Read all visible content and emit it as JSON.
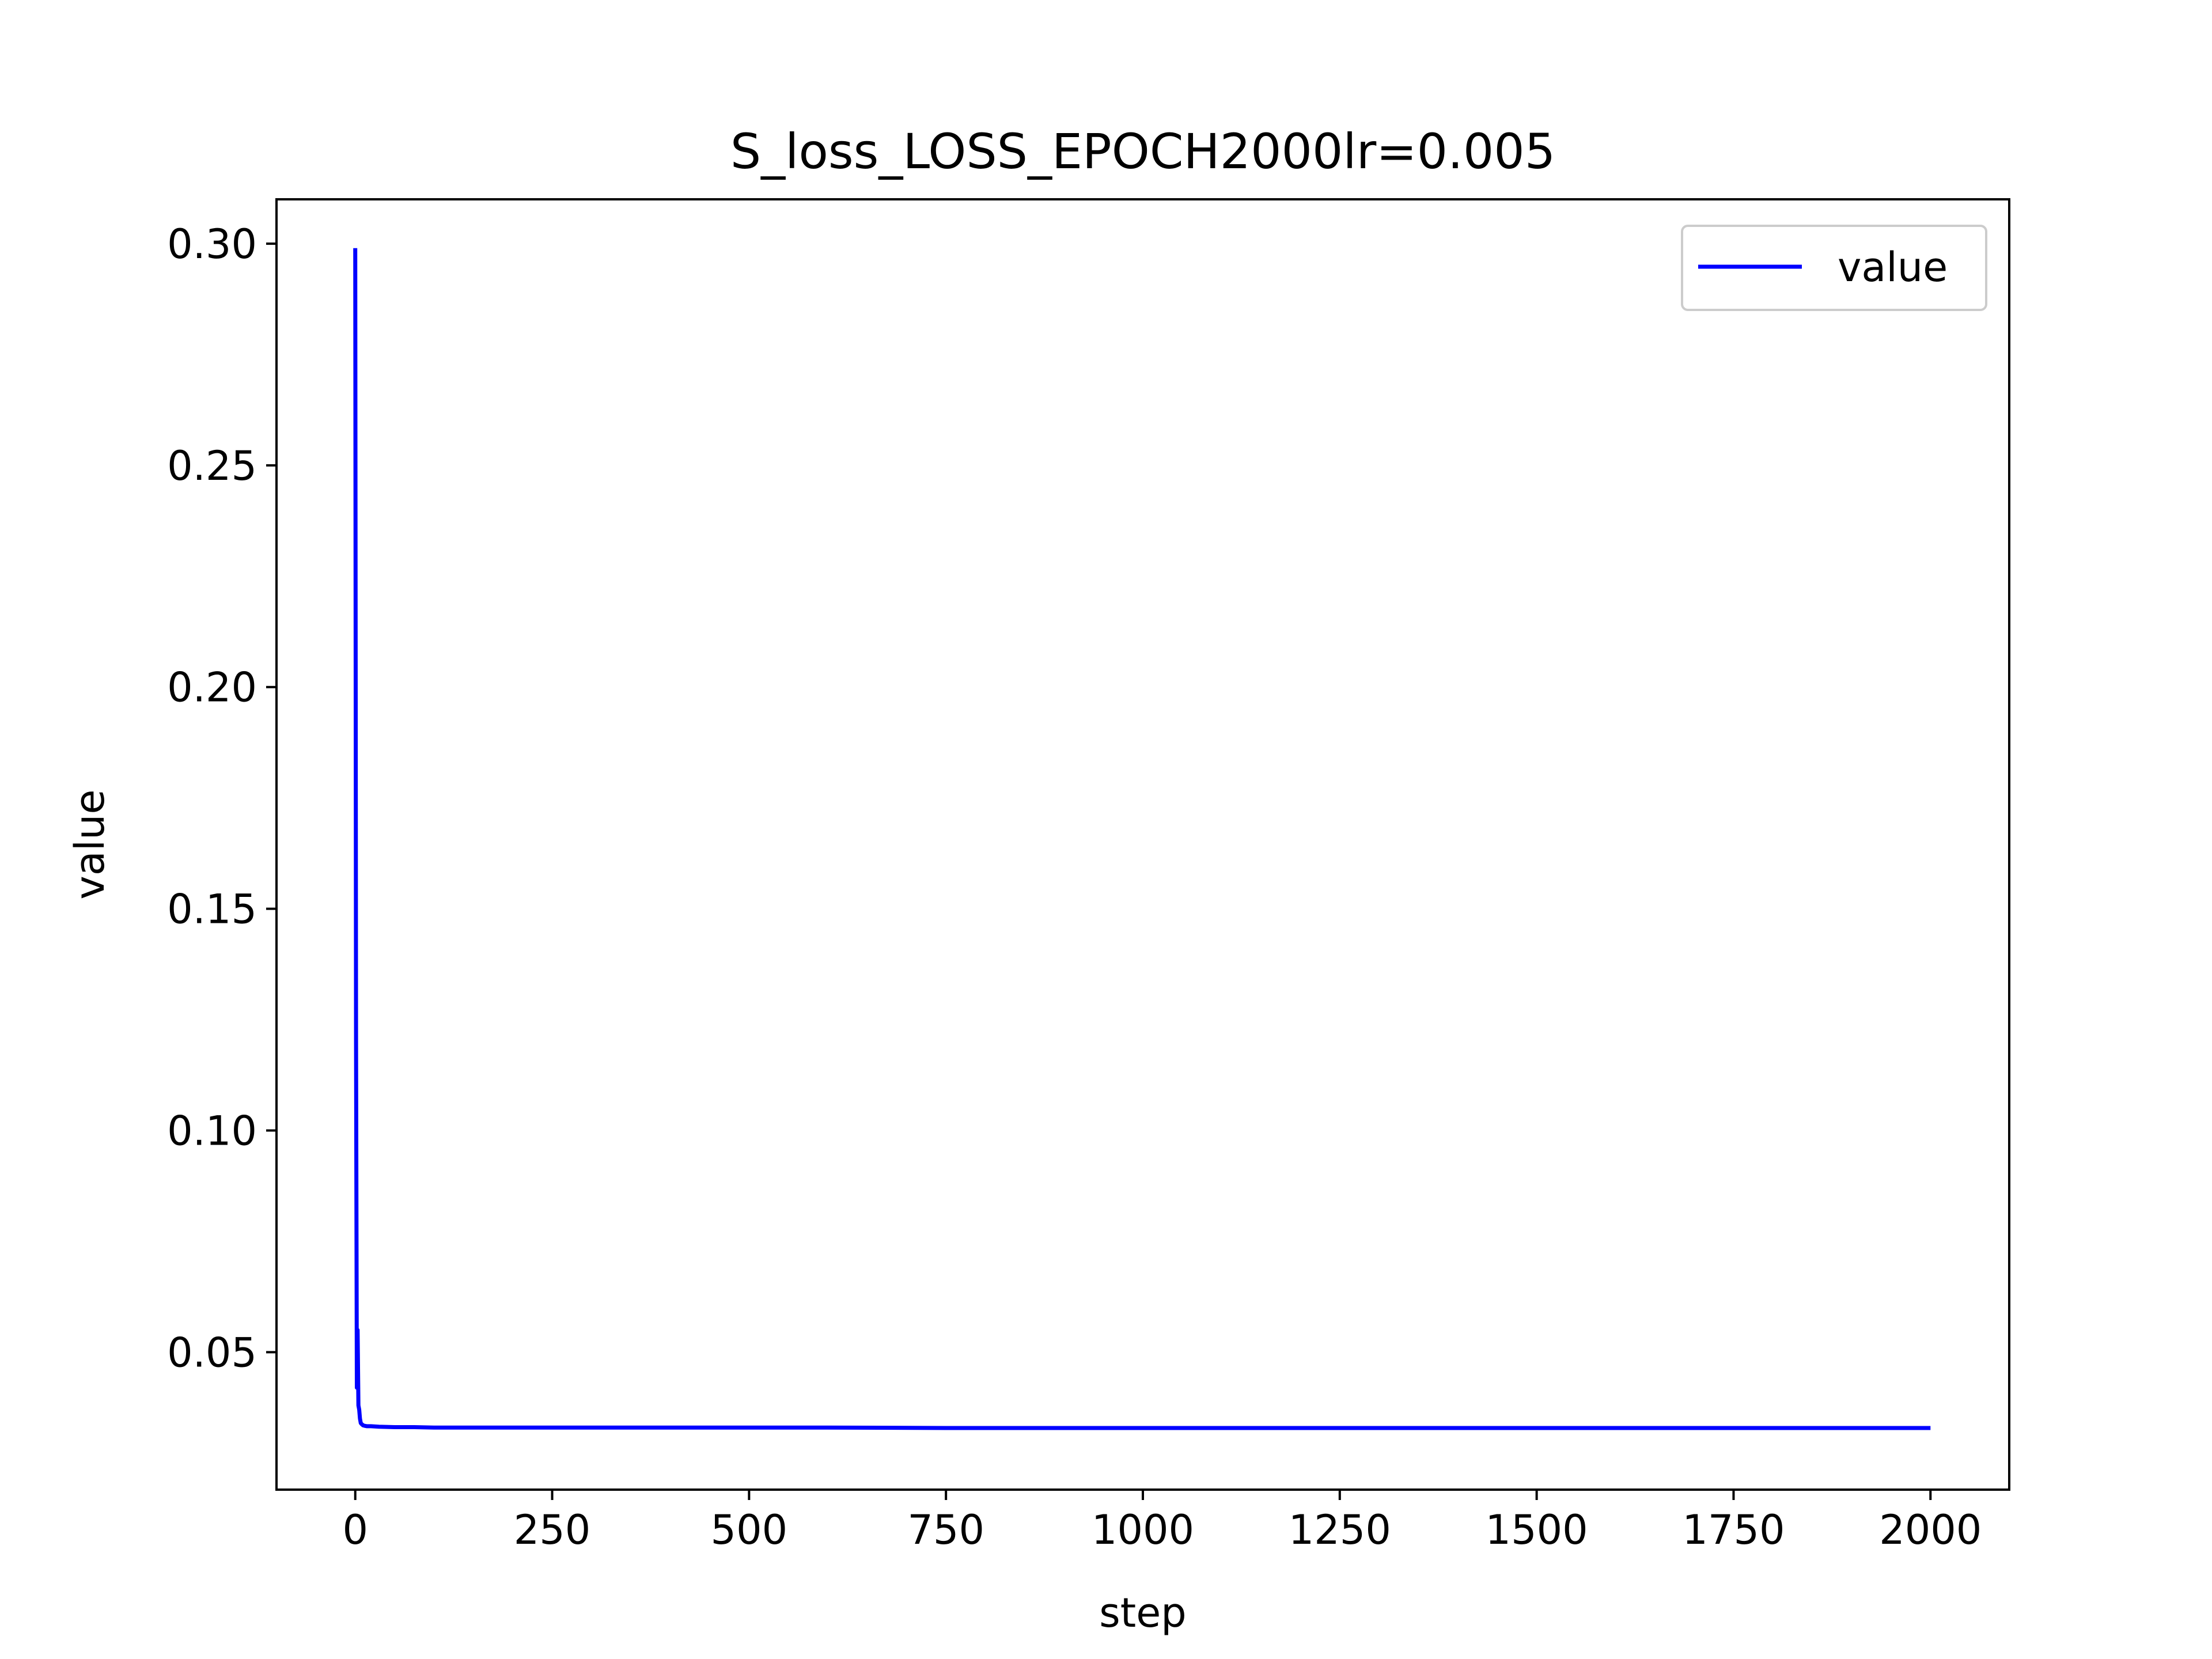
{
  "chart_data": {
    "type": "line",
    "title": "S_loss_LOSS_EPOCH2000lr=0.005",
    "xlabel": "step",
    "ylabel": "value",
    "xlim": [
      -100,
      2100
    ],
    "ylim": [
      0.019,
      0.31
    ],
    "xticks": [
      0,
      250,
      500,
      750,
      1000,
      1250,
      1500,
      1750,
      2000
    ],
    "xtick_labels": [
      "0",
      "250",
      "500",
      "750",
      "1000",
      "1250",
      "1500",
      "1750",
      "2000"
    ],
    "yticks": [
      0.05,
      0.1,
      0.15,
      0.2,
      0.25,
      0.3
    ],
    "ytick_labels": [
      "0.05",
      "0.10",
      "0.15",
      "0.20",
      "0.25",
      "0.30"
    ],
    "grid": false,
    "legend_position": "top-right",
    "series": [
      {
        "name": "value",
        "color": "#0000ff",
        "x": [
          0,
          1,
          2,
          3,
          4,
          5,
          6,
          7,
          8,
          10,
          12,
          15,
          20,
          30,
          50,
          75,
          100,
          150,
          200,
          250,
          300,
          400,
          500,
          600,
          750,
          1000,
          1250,
          1500,
          1750,
          2000
        ],
        "y": [
          0.299,
          0.12,
          0.042,
          0.055,
          0.038,
          0.037,
          0.035,
          0.034,
          0.0338,
          0.0335,
          0.0334,
          0.0333,
          0.0333,
          0.0332,
          0.0331,
          0.0331,
          0.033,
          0.033,
          0.033,
          0.033,
          0.033,
          0.033,
          0.033,
          0.033,
          0.0329,
          0.0329,
          0.0329,
          0.0329,
          0.0329,
          0.0329
        ]
      }
    ]
  }
}
